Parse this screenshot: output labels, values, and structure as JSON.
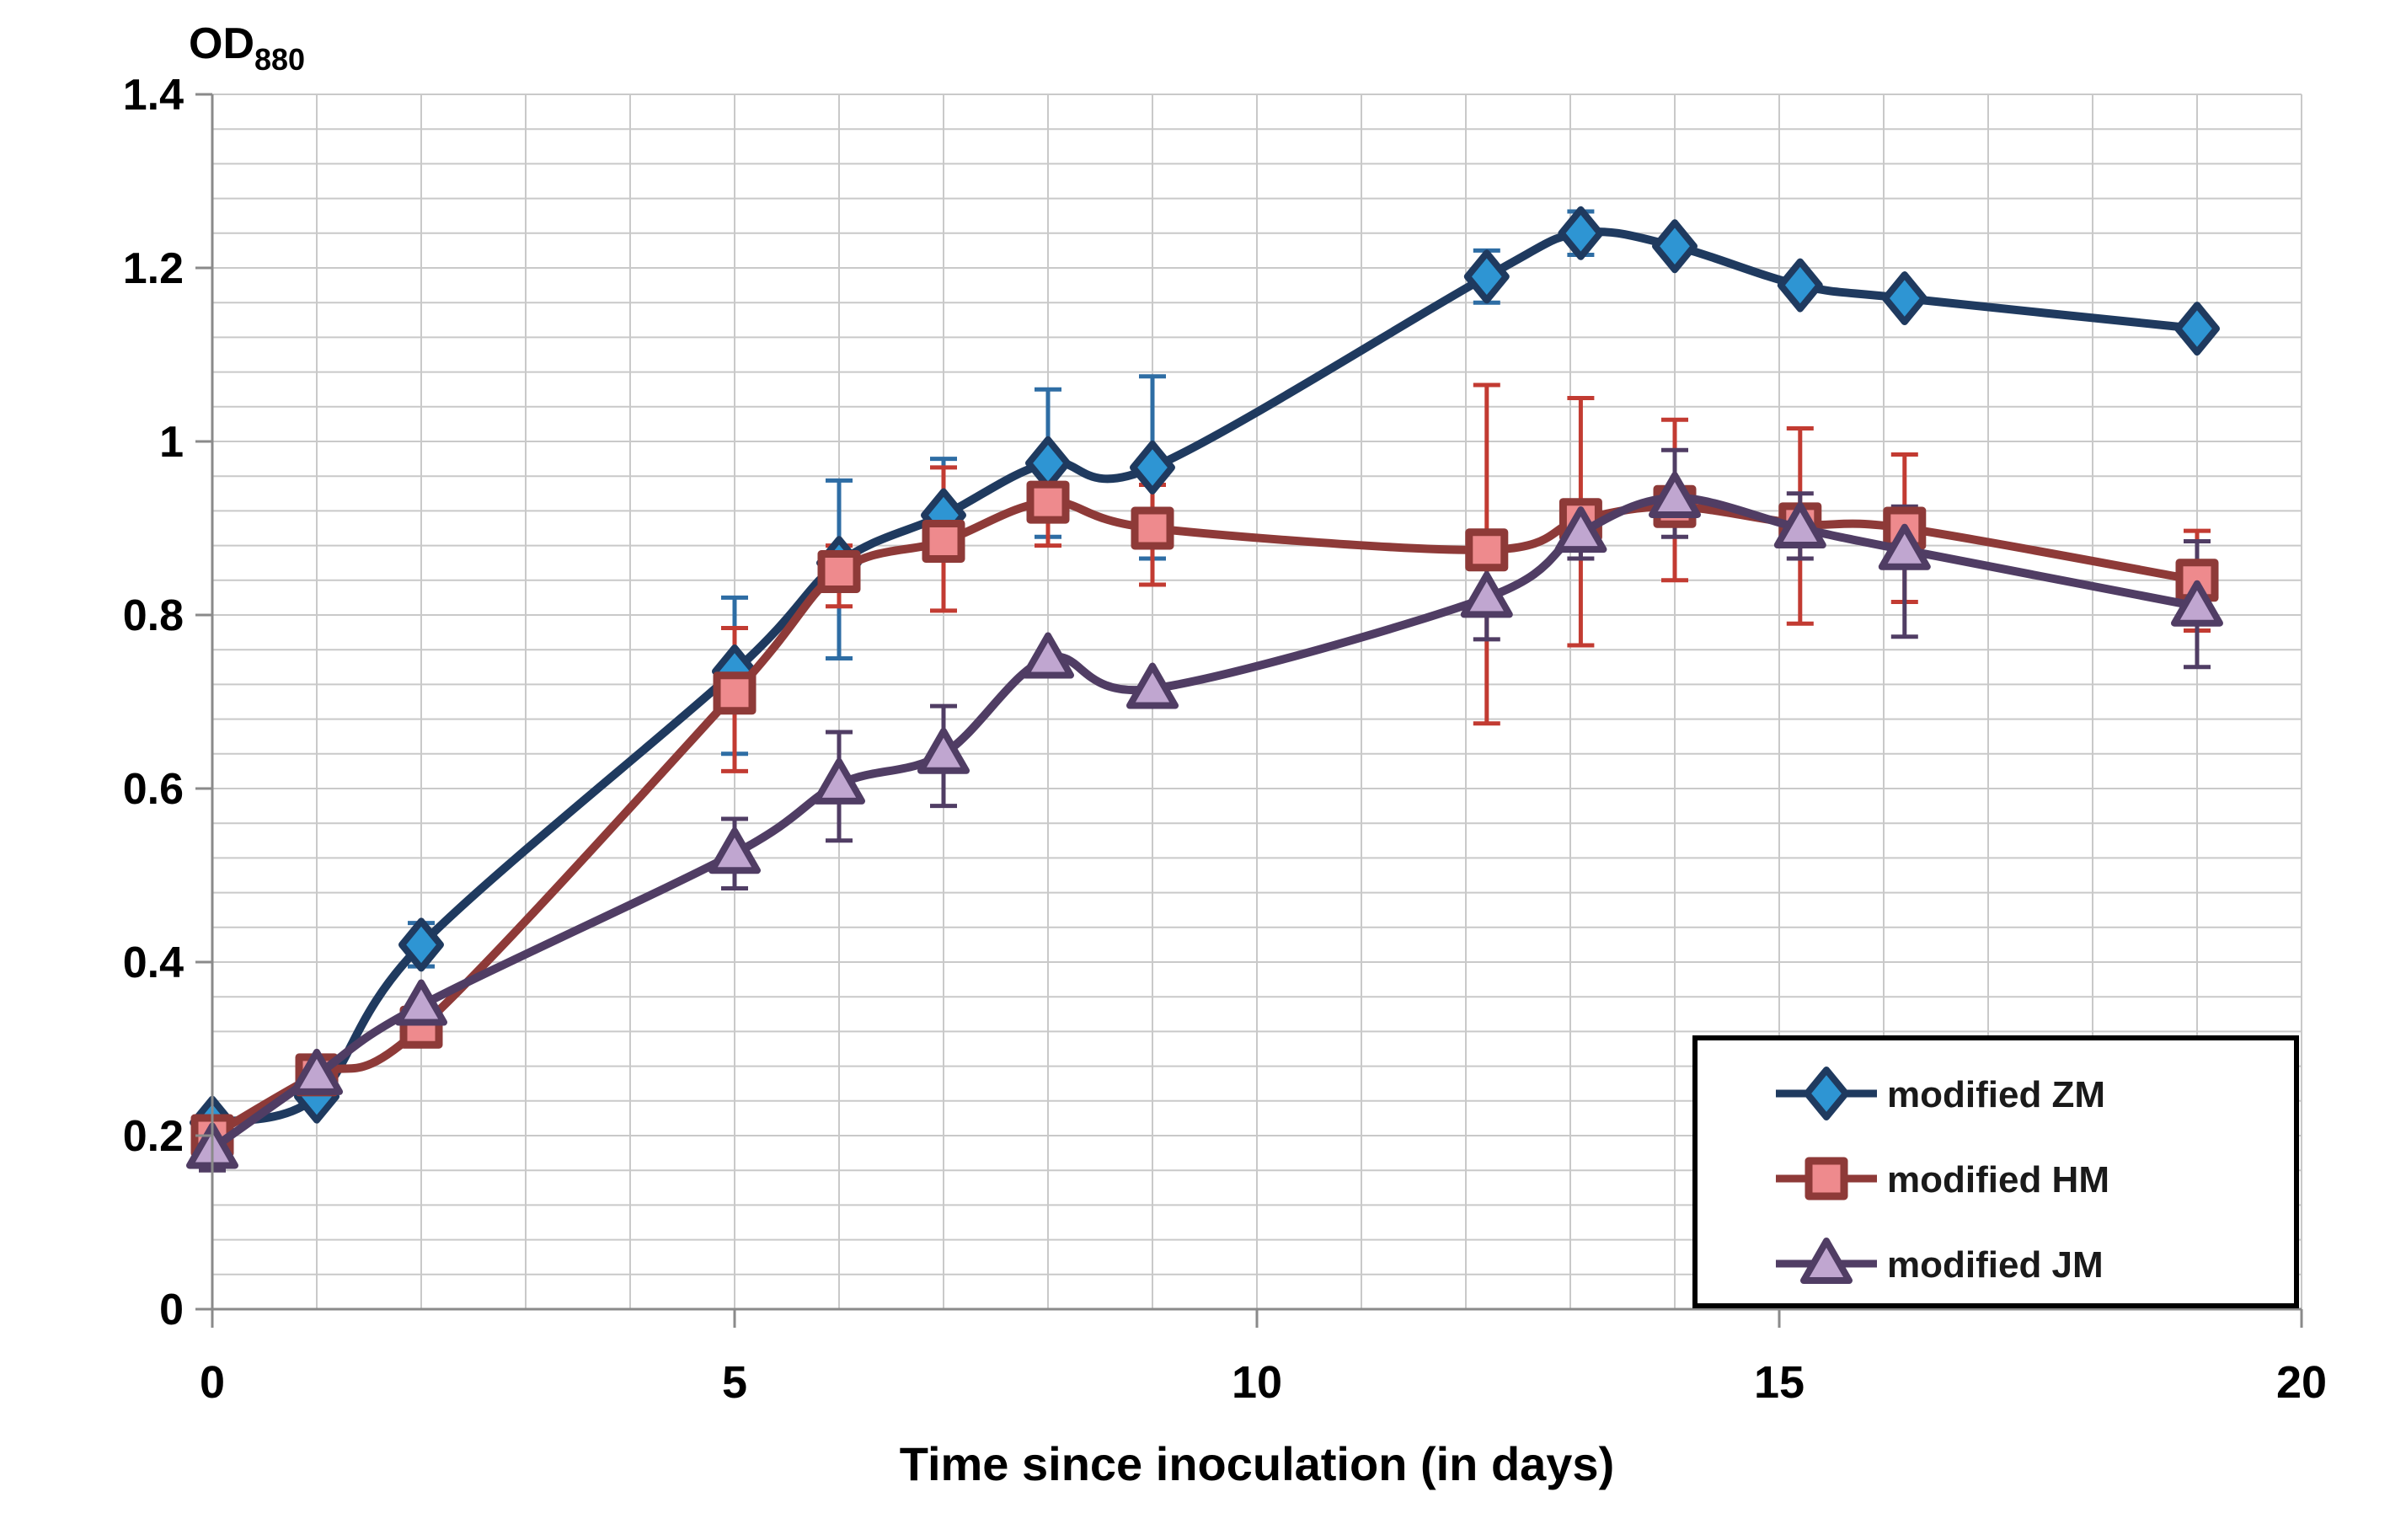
{
  "figure": {
    "od_label": "OD",
    "od_subscript": "880",
    "x_axis_title": "Time since inoculation (in days)"
  },
  "axes": {
    "x_tick_labels": [
      "0",
      "5",
      "10",
      "15",
      "20"
    ],
    "y_tick_labels": [
      "0",
      "0.2",
      "0.4",
      "0.6",
      "0.8",
      "1",
      "1.2",
      "1.4"
    ]
  },
  "style_colors": {
    "grid": "#c9c9c9",
    "axis": "#8a8a8a",
    "legend_border": "#000000",
    "text": "#000000",
    "background": "#ffffff"
  },
  "chart_data": {
    "type": "line",
    "title": "OD880",
    "xlabel": "Time since inoculation (in days)",
    "ylabel": "OD880",
    "xlim": [
      0,
      20
    ],
    "ylim": [
      0,
      1.4
    ],
    "x_major_ticks": [
      0,
      5,
      10,
      15,
      20
    ],
    "x_minor_step": 1,
    "y_major_ticks": [
      0,
      0.2,
      0.4,
      0.6,
      0.8,
      1,
      1.2,
      1.4
    ],
    "y_minor_step": 0.04,
    "grid": true,
    "legend_position": "bottom-right",
    "line_smoothing": true,
    "x": [
      0,
      1,
      2,
      5,
      6,
      7,
      8,
      9,
      12.2,
      13.1,
      14,
      15.2,
      16.2,
      19
    ],
    "series": [
      {
        "name": "modified ZM",
        "marker": "diamond",
        "line_color": "#1f3a5f",
        "marker_fill": "#2e95d3",
        "error_color": "#2e6da4",
        "values": [
          0.215,
          0.245,
          0.42,
          0.735,
          0.86,
          0.915,
          0.975,
          0.97,
          1.19,
          1.24,
          1.225,
          1.18,
          1.165,
          1.13
        ],
        "err_plus": [
          0,
          0,
          0.025,
          0.085,
          0.095,
          0.065,
          0.085,
          0.105,
          0.03,
          0.025,
          0,
          0,
          0,
          0
        ],
        "err_minus": [
          0,
          0,
          0.025,
          0.095,
          0.11,
          0.04,
          0.085,
          0.105,
          0.03,
          0.025,
          0,
          0,
          0,
          0
        ]
      },
      {
        "name": "modified HM",
        "marker": "square",
        "line_color": "#8e3a38",
        "marker_fill": "#ee8a8d",
        "error_color": "#c23b32",
        "values": [
          0.2,
          0.27,
          0.325,
          0.71,
          0.85,
          0.885,
          0.93,
          0.9,
          0.875,
          0.91,
          0.925,
          0.905,
          0.9,
          0.84
        ],
        "err_plus": [
          0,
          0,
          0,
          0.075,
          0.03,
          0.085,
          0.055,
          0.05,
          0.19,
          0.14,
          0.1,
          0.11,
          0.085,
          0.057
        ],
        "err_minus": [
          0,
          0,
          0,
          0.09,
          0.04,
          0.08,
          0.05,
          0.065,
          0.2,
          0.145,
          0.085,
          0.115,
          0.085,
          0.058
        ]
      },
      {
        "name": "modified JM",
        "marker": "triangle",
        "line_color": "#503d64",
        "marker_fill": "#c0a6d0",
        "error_color": "#503d64",
        "values": [
          0.185,
          0.27,
          0.35,
          0.525,
          0.605,
          0.64,
          0.75,
          0.715,
          0.82,
          0.895,
          0.935,
          0.9,
          0.875,
          0.81
        ],
        "err_plus": [
          0,
          0,
          0,
          0.04,
          0.06,
          0.055,
          0,
          0,
          0.045,
          0.03,
          0.055,
          0.04,
          0.05,
          0.075
        ],
        "err_minus": [
          0.025,
          0,
          0,
          0.04,
          0.065,
          0.06,
          0,
          0,
          0.048,
          0.03,
          0.045,
          0.035,
          0.1,
          0.07
        ]
      }
    ]
  }
}
